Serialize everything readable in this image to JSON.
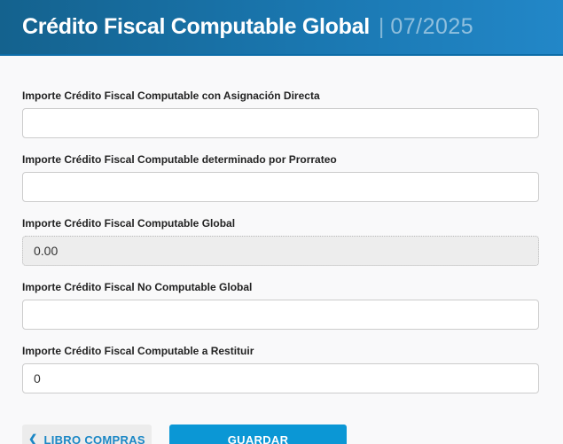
{
  "header": {
    "title": "Crédito Fiscal Computable Global",
    "separator": "|",
    "period": "07/2025"
  },
  "form": {
    "fields": [
      {
        "label": "Importe Crédito Fiscal Computable con Asignación Directa",
        "value": "",
        "disabled": false
      },
      {
        "label": "Importe Crédito Fiscal Computable determinado por Prorrateo",
        "value": "",
        "disabled": false
      },
      {
        "label": "Importe Crédito Fiscal Computable Global",
        "value": "0.00",
        "disabled": true
      },
      {
        "label": "Importe Crédito Fiscal No Computable Global",
        "value": "",
        "disabled": false
      },
      {
        "label": "Importe Crédito Fiscal Computable a Restituir",
        "value": "0",
        "disabled": false
      }
    ]
  },
  "footer": {
    "back_button": {
      "icon": "chevron-left",
      "glyph": "❮",
      "label": "LIBRO COMPRAS"
    },
    "save_button": {
      "label": "GUARDAR"
    }
  },
  "colors": {
    "header_gradient_left": "#14628e",
    "header_gradient_right": "#2287c8",
    "header_border": "#0d6da8",
    "accent_blue": "#0b97d5",
    "link_blue": "#1b87c5",
    "page_background": "#f9f9fa"
  }
}
